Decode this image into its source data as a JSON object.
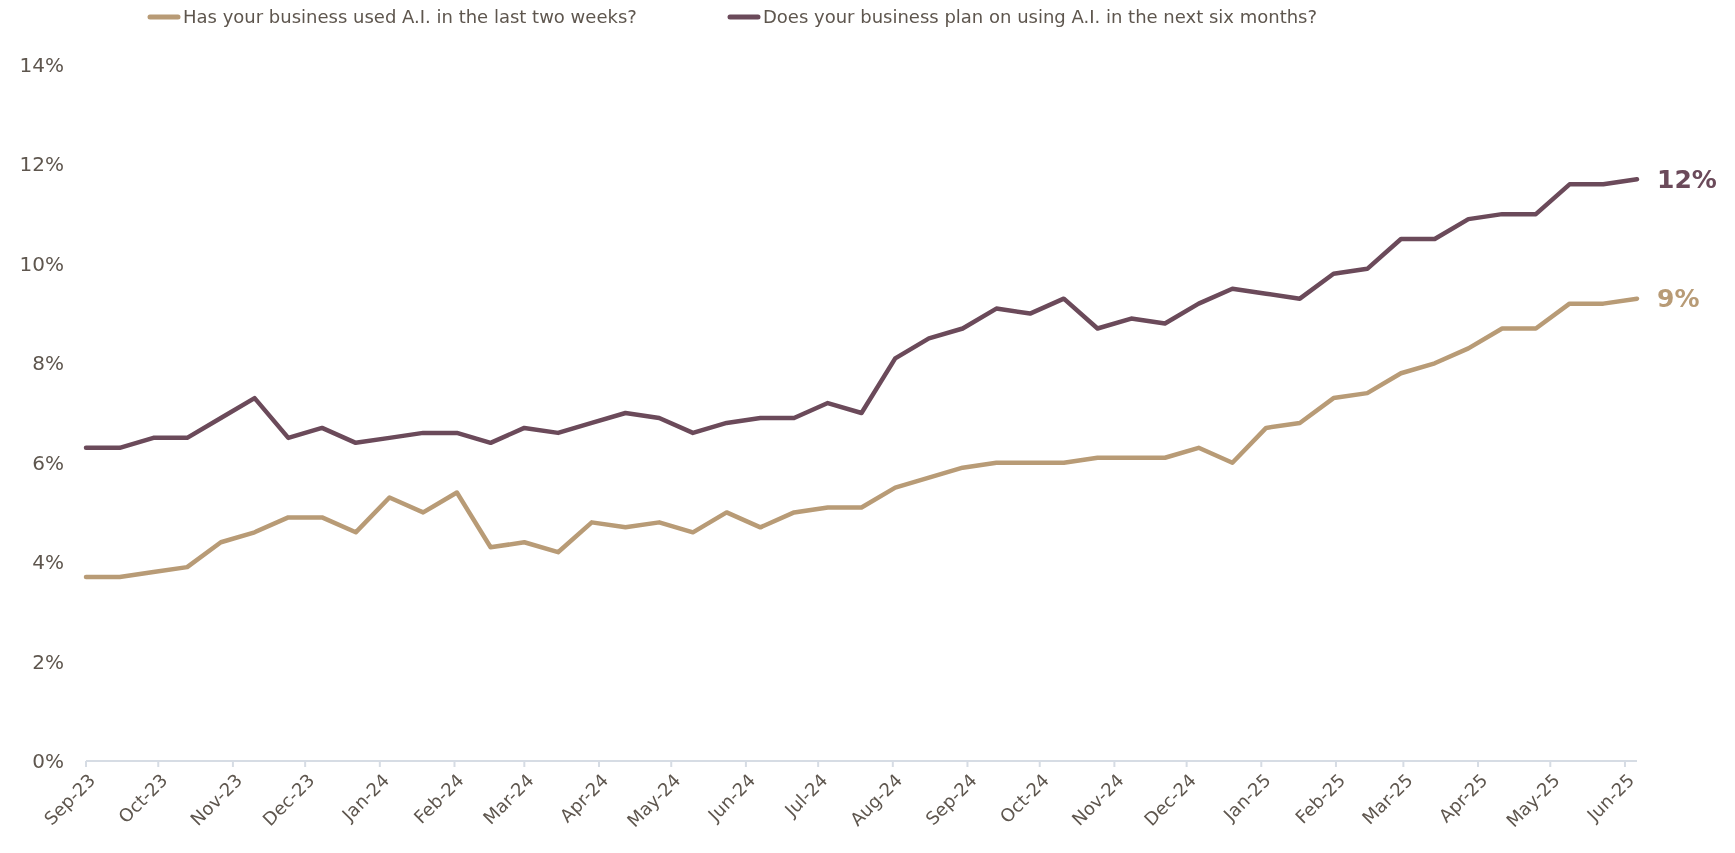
{
  "chart_data": {
    "type": "line",
    "x": [
      "2023-09-01",
      "2023-09-15",
      "2023-09-29",
      "2023-10-13",
      "2023-10-27",
      "2023-11-10",
      "2023-11-24",
      "2023-12-08",
      "2023-12-22",
      "2024-01-05",
      "2024-01-19",
      "2024-02-02",
      "2024-02-16",
      "2024-03-01",
      "2024-03-15",
      "2024-03-29",
      "2024-04-12",
      "2024-04-26",
      "2024-05-10",
      "2024-05-24",
      "2024-06-07",
      "2024-06-21",
      "2024-07-05",
      "2024-07-19",
      "2024-08-02",
      "2024-08-16",
      "2024-08-30",
      "2024-09-13",
      "2024-09-27",
      "2024-10-11",
      "2024-10-25",
      "2024-11-08",
      "2024-11-22",
      "2024-12-06",
      "2024-12-20",
      "2025-01-03",
      "2025-01-17",
      "2025-01-31",
      "2025-02-14",
      "2025-02-28",
      "2025-03-14",
      "2025-03-28",
      "2025-04-11",
      "2025-04-25",
      "2025-05-09",
      "2025-05-23",
      "2025-06-06"
    ],
    "series": [
      {
        "name": "Has your business used A.I. in the last two weeks?",
        "color": "#b89b76",
        "values": [
          3.7,
          3.7,
          3.8,
          3.9,
          4.4,
          4.6,
          4.9,
          4.9,
          4.6,
          5.3,
          5.0,
          5.4,
          4.3,
          4.4,
          4.2,
          4.8,
          4.7,
          4.8,
          4.6,
          5.0,
          4.7,
          5.0,
          5.1,
          5.1,
          5.5,
          5.7,
          5.9,
          6.0,
          6.0,
          6.0,
          6.1,
          6.1,
          6.1,
          6.3,
          6.0,
          6.7,
          6.8,
          7.3,
          7.4,
          7.8,
          8.0,
          8.3,
          8.7,
          8.7,
          9.2,
          9.2,
          9.3
        ],
        "value_labels": [
          null,
          null,
          null,
          null,
          null,
          null,
          null,
          null,
          null,
          null,
          null,
          null,
          null,
          null,
          null,
          null,
          null,
          null,
          null,
          null,
          null,
          null,
          null,
          null,
          null,
          null,
          null,
          null,
          null,
          null,
          null,
          null,
          null,
          null,
          null,
          null,
          null,
          null,
          null,
          null,
          null,
          null,
          null,
          null,
          null,
          null,
          "9%"
        ]
      },
      {
        "name": "Does your business plan on using A.I. in the next six months?",
        "color": "#6b4a5a",
        "values": [
          6.3,
          6.3,
          6.5,
          6.5,
          6.9,
          7.3,
          6.5,
          6.7,
          6.4,
          6.5,
          6.6,
          6.6,
          6.4,
          6.7,
          6.6,
          6.8,
          7.0,
          6.9,
          6.6,
          6.8,
          6.9,
          6.9,
          7.2,
          7.0,
          8.1,
          8.5,
          8.7,
          9.1,
          9.0,
          9.3,
          8.7,
          8.9,
          8.8,
          9.2,
          9.5,
          9.4,
          9.3,
          9.8,
          9.9,
          10.5,
          10.5,
          10.9,
          11.0,
          11.0,
          11.6,
          11.6,
          11.7
        ],
        "value_labels": [
          null,
          null,
          null,
          null,
          null,
          null,
          null,
          null,
          null,
          null,
          null,
          null,
          null,
          null,
          null,
          null,
          null,
          null,
          null,
          null,
          null,
          null,
          null,
          null,
          null,
          null,
          null,
          null,
          null,
          null,
          null,
          null,
          null,
          null,
          null,
          null,
          null,
          null,
          null,
          null,
          null,
          null,
          null,
          null,
          null,
          null,
          "12%"
        ]
      }
    ],
    "xlim": [
      "2023-09-01",
      "2025-06-06"
    ],
    "xticks": [
      {
        "value": "2023-09-01",
        "label": "Sep-23"
      },
      {
        "value": "2023-10-01",
        "label": "Oct-23"
      },
      {
        "value": "2023-11-01",
        "label": "Nov-23"
      },
      {
        "value": "2023-12-01",
        "label": "Dec-23"
      },
      {
        "value": "2024-01-01",
        "label": "Jan-24"
      },
      {
        "value": "2024-02-01",
        "label": "Feb-24"
      },
      {
        "value": "2024-03-01",
        "label": "Mar-24"
      },
      {
        "value": "2024-04-01",
        "label": "Apr-24"
      },
      {
        "value": "2024-05-01",
        "label": "May-24"
      },
      {
        "value": "2024-06-01",
        "label": "Jun-24"
      },
      {
        "value": "2024-07-01",
        "label": "Jul-24"
      },
      {
        "value": "2024-08-01",
        "label": "Aug-24"
      },
      {
        "value": "2024-09-01",
        "label": "Sep-24"
      },
      {
        "value": "2024-10-01",
        "label": "Oct-24"
      },
      {
        "value": "2024-11-01",
        "label": "Nov-24"
      },
      {
        "value": "2024-12-01",
        "label": "Dec-24"
      },
      {
        "value": "2025-01-01",
        "label": "Jan-25"
      },
      {
        "value": "2025-02-01",
        "label": "Feb-25"
      },
      {
        "value": "2025-03-01",
        "label": "Mar-25"
      },
      {
        "value": "2025-04-01",
        "label": "Apr-25"
      },
      {
        "value": "2025-05-01",
        "label": "May-25"
      },
      {
        "value": "2025-06-01",
        "label": "Jun-25"
      }
    ],
    "ylim": [
      0,
      14
    ],
    "yticks": [
      {
        "value": 0,
        "label": "0%"
      },
      {
        "value": 2,
        "label": "2%"
      },
      {
        "value": 4,
        "label": "4%"
      },
      {
        "value": 6,
        "label": "6%"
      },
      {
        "value": 8,
        "label": "8%"
      },
      {
        "value": 10,
        "label": "10%"
      },
      {
        "value": 12,
        "label": "12%"
      },
      {
        "value": 14,
        "label": "14%"
      }
    ],
    "grid": false,
    "legend": "top",
    "marker": "none",
    "line_style": "solid"
  }
}
